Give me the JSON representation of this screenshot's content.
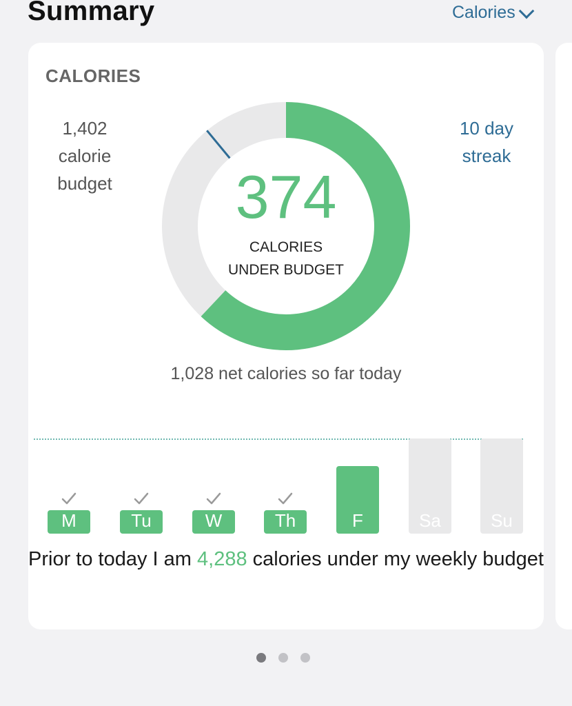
{
  "header": {
    "title": "Summary",
    "filter_label": "Calories"
  },
  "card": {
    "label": "CALORIES",
    "budget": {
      "line1": "1,402",
      "line2": "calorie",
      "line3": "budget"
    },
    "streak": {
      "line1": "10 day",
      "line2": "streak"
    },
    "ring": {
      "value": "374",
      "caption_line1": "CALORIES",
      "caption_line2": "UNDER BUDGET",
      "progress_fraction": 0.62,
      "colors": {
        "progress": "#5ec07f",
        "track": "#e9e9ea",
        "marker": "#2e6c95"
      }
    },
    "net_text": "1,028 net calories so far today",
    "week": {
      "days": [
        {
          "label": "M",
          "checked": true,
          "status": "past"
        },
        {
          "label": "Tu",
          "checked": true,
          "status": "past"
        },
        {
          "label": "W",
          "checked": true,
          "status": "past"
        },
        {
          "label": "Th",
          "checked": true,
          "status": "past"
        },
        {
          "label": "F",
          "checked": false,
          "status": "today"
        },
        {
          "label": "Sa",
          "checked": false,
          "status": "future"
        },
        {
          "label": "Su",
          "checked": false,
          "status": "future"
        }
      ]
    },
    "summary": {
      "prefix": "Prior to today I am ",
      "amount": "4,288",
      "suffix": " calories under my weekly budget"
    }
  },
  "pager": {
    "count": 3,
    "active_index": 0
  }
}
